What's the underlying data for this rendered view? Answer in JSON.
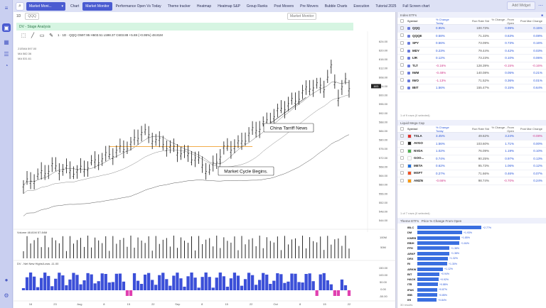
{
  "nav": {
    "search_icon": "magnify-icon",
    "layout_select": "Market Moni...",
    "tabs": [
      "Chart",
      "Market Monitor",
      "Performance Open Vs Today",
      "Theme tracker",
      "Heatmap",
      "Heatmap S&P",
      "Group Ranks",
      "Post Movers",
      "Pre Movers",
      "Bubble Charts",
      "Execution",
      "Tutorial 2025",
      "Full Screen chart"
    ],
    "active_tab": 1,
    "add_widget": "Add Widget"
  },
  "chart": {
    "interval": "1D",
    "symbol_select": "QQQ",
    "layout_select": "Market Monitor",
    "banner": "DV - Stage Analysis",
    "ohlc": "1 · 1D · QQQ  O597.95 H603.51 L598.37 C603.88 +5.69 (+0.95%)  48.81M",
    "ma_legend": [
      "21EMA 597.00",
      "MA 582.36",
      "MA 531.61"
    ],
    "price_label": "603",
    "annotations": [
      "China Tarriff News",
      "Market Cycle Begins."
    ],
    "y_ticks": [
      "624.00",
      "620.00",
      "616.00",
      "612.00",
      "608.00",
      "604.00",
      "600.00",
      "596.00",
      "592.00",
      "588.00",
      "584.00",
      "580.00",
      "576.00",
      "572.00",
      "568.00",
      "564.00",
      "560.00",
      "556.00",
      "552.00",
      "548.00",
      "544.00"
    ],
    "volume_label": "Volume  48.81M  57.84M",
    "volume_ticks": [
      "100M",
      "50M"
    ],
    "nhnl_label": "DV - Net New Highs/Lows  -11.00",
    "nhnl_ticks": [
      "150.00",
      "100.00",
      "50.00",
      "0.00",
      "-50.00"
    ],
    "x_labels": [
      "16",
      "23",
      "Aug",
      "8",
      "15",
      "22",
      "Sep",
      "8",
      "15",
      "22",
      "Oct",
      "8",
      "15",
      "22"
    ],
    "colors": {
      "candle": "#111111",
      "ma21": "#666666",
      "ma50": "#888888",
      "ma200": "#555555",
      "hline": "#f0a030",
      "nhnl_pos": "#3b4fd8",
      "nhnl_neg": "#e040b0"
    }
  },
  "index_etfs": {
    "title": "Index ETFs",
    "headers": [
      "Symbol",
      "% Change Today",
      "Run Rate Std",
      "% Change - From Open",
      "Post Mar Change"
    ],
    "rows": [
      {
        "sym": "QQQ",
        "pct": "0.95%",
        "rr": "100.73%",
        "ch": "0.99%",
        "pm": "0.15%",
        "sel": true
      },
      {
        "sym": "QQQE",
        "pct": "0.58%",
        "rr": "71.33%",
        "ch": "0.63%",
        "pm": "0.08%",
        "sel": false
      },
      {
        "sym": "SPY",
        "pct": "0.56%",
        "rr": "73.09%",
        "ch": "0.73%",
        "pm": "0.16%",
        "sel": false
      },
      {
        "sym": "MDY",
        "pct": "0.23%",
        "rr": "79.44%",
        "ch": "0.42%",
        "pm": "0.03%",
        "sel": false
      },
      {
        "sym": "IJR",
        "pct": "0.12%",
        "rr": "73.23%",
        "ch": "0.10%",
        "pm": "0.06%",
        "sel": false
      },
      {
        "sym": "TLT",
        "pct": "-0.16%",
        "rr": "128.39%",
        "ch": "-0.15%",
        "pm": "-0.16%",
        "sel": false
      },
      {
        "sym": "IWM",
        "pct": "-0.48%",
        "rr": "140.08%",
        "ch": "0.05%",
        "pm": "0.21%",
        "sel": false
      },
      {
        "sym": "IWO",
        "pct": "-1.13%",
        "rr": "71.52%",
        "ch": "0.36%",
        "pm": "0.01%",
        "sel": false
      },
      {
        "sym": "IBIT",
        "pct": "1.56%",
        "rr": "155.47%",
        "ch": "0.15%",
        "pm": "0.64%",
        "sel": false
      }
    ],
    "footer": "1 of 9 rows (0 selected)"
  },
  "liquid_mega": {
    "title": "Liquid Mega Cap",
    "headers": [
      "Symbol",
      "% Change Today",
      "Run Rate Std",
      "% Change - From Open",
      "Post Mar Change"
    ],
    "rows": [
      {
        "sym": "TSLA",
        "pct": "3.45%",
        "rr": "49.62%",
        "ch": "3.24%",
        "pm": "-0.08%",
        "logo": "#e03030",
        "sel": true
      },
      {
        "sym": "AVGO",
        "pct": "1.56%",
        "rr": "103.60%",
        "ch": "1.71%",
        "pm": "0.00%",
        "logo": "#222222",
        "sel": false
      },
      {
        "sym": "NVDA",
        "pct": "1.02%",
        "rr": "76.09%",
        "ch": "1.19%",
        "pm": "0.10%",
        "logo": "#4caf50",
        "sel": false
      },
      {
        "sym": "GOO...",
        "pct": "0.74%",
        "rr": "90.25%",
        "ch": "0.97%",
        "pm": "0.13%",
        "logo": "#ffffff",
        "sel": false
      },
      {
        "sym": "META",
        "pct": "0.62%",
        "rr": "95.73%",
        "ch": "1.06%",
        "pm": "0.12%",
        "logo": "#1e6fe0",
        "sel": false
      },
      {
        "sym": "MSFT",
        "pct": "0.27%",
        "rr": "71.66%",
        "ch": "0.46%",
        "pm": "0.07%",
        "logo": "#f25022",
        "sel": false
      },
      {
        "sym": "AMZN",
        "pct": "-0.66%",
        "rr": "98.74%",
        "ch": "-0.70%",
        "pm": "0.24%",
        "logo": "#ff9900",
        "sel": false
      }
    ],
    "footer": "1 of 7 rows (0 selected)"
  },
  "theme_etfs": {
    "title": "Theme ETFs",
    "header": "Price % Change From Open",
    "rows": [
      {
        "sym": "IBLC",
        "v": "+2.77%",
        "f": 1.0
      },
      {
        "sym": "DM",
        "v": "+1.93%",
        "f": 0.7
      },
      {
        "sym": "KWEB",
        "v": "+1.85%",
        "f": 0.67
      },
      {
        "sym": "EBIH",
        "v": "+1.84%",
        "f": 0.66
      },
      {
        "sym": "FFH",
        "v": "+1.38%",
        "f": 0.5
      },
      {
        "sym": "ARKF",
        "v": "+1.38%",
        "f": 0.5
      },
      {
        "sym": "DRX",
        "v": "+1.32%",
        "f": 0.48
      },
      {
        "sym": "RI",
        "v": "+1.30%",
        "f": 0.47
      },
      {
        "sym": "ARKW",
        "v": "+1.12%",
        "f": 0.4
      },
      {
        "sym": "BIT",
        "v": "+0.94%",
        "f": 0.34
      },
      {
        "sym": "HACK",
        "v": "+0.92%",
        "f": 0.33
      },
      {
        "sym": "ITB",
        "v": "+0.88%",
        "f": 0.32
      },
      {
        "sym": "IPAK",
        "v": "+0.87%",
        "f": 0.31
      },
      {
        "sym": "IBB",
        "v": "+0.85%",
        "f": 0.31
      },
      {
        "sym": "IHI",
        "v": "+0.84%",
        "f": 0.3
      }
    ],
    "footer": "30 results"
  }
}
